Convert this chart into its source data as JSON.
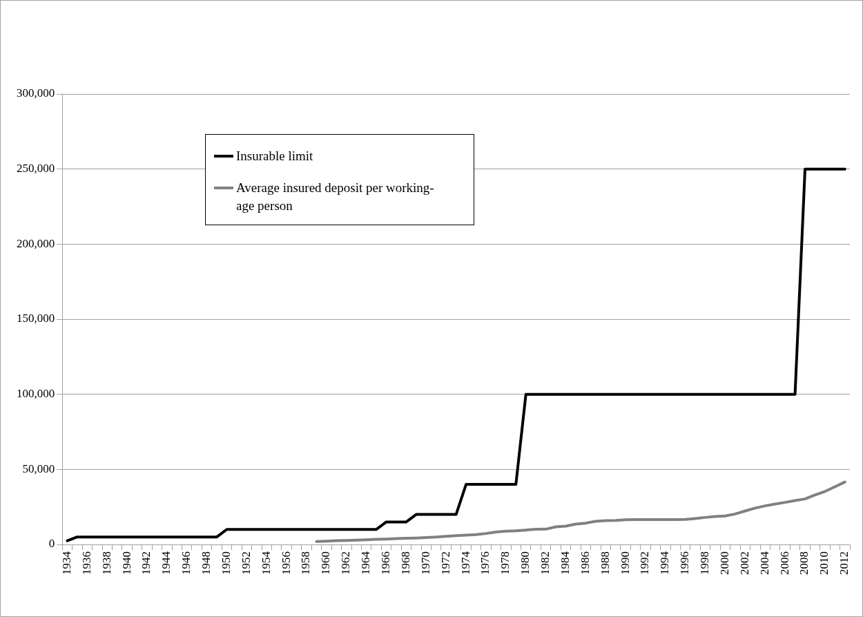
{
  "chart_data": {
    "type": "line",
    "categories": [
      "1934",
      null,
      "1936",
      null,
      "1938",
      null,
      "1940",
      null,
      "1942",
      null,
      "1944",
      null,
      "1946",
      null,
      "1948",
      null,
      "1950",
      null,
      "1952",
      null,
      "1954",
      null,
      "1956",
      null,
      "1958",
      null,
      "1960",
      null,
      "1962",
      null,
      "1964",
      null,
      "1966",
      null,
      "1968",
      null,
      "1970",
      null,
      "1972",
      null,
      "1974",
      null,
      "1976",
      null,
      "1978",
      null,
      "1980",
      null,
      "1982",
      null,
      "1984",
      null,
      "1986",
      null,
      "1988",
      null,
      "1990",
      null,
      "1992",
      null,
      "1994",
      null,
      "1996",
      null,
      "1998",
      null,
      "2000",
      null,
      "2002",
      null,
      "2004",
      null,
      "2006",
      null,
      "2008",
      null,
      "2010",
      null,
      "2012"
    ],
    "series": [
      {
        "name": "Insurable limit",
        "color": "#000000",
        "values": [
          2500,
          5000,
          5000,
          5000,
          5000,
          5000,
          5000,
          5000,
          5000,
          5000,
          5000,
          5000,
          5000,
          5000,
          5000,
          5000,
          10000,
          10000,
          10000,
          10000,
          10000,
          10000,
          10000,
          10000,
          10000,
          10000,
          10000,
          10000,
          10000,
          10000,
          10000,
          10000,
          15000,
          15000,
          15000,
          20000,
          20000,
          20000,
          20000,
          20000,
          40000,
          40000,
          40000,
          40000,
          40000,
          40000,
          100000,
          100000,
          100000,
          100000,
          100000,
          100000,
          100000,
          100000,
          100000,
          100000,
          100000,
          100000,
          100000,
          100000,
          100000,
          100000,
          100000,
          100000,
          100000,
          100000,
          100000,
          100000,
          100000,
          100000,
          100000,
          100000,
          100000,
          100000,
          250000,
          250000,
          250000,
          250000,
          250000
        ]
      },
      {
        "name": "Average insured deposit per working-age person",
        "color": "#808080",
        "values": [
          null,
          null,
          null,
          null,
          null,
          null,
          null,
          null,
          null,
          null,
          null,
          null,
          null,
          null,
          null,
          null,
          null,
          null,
          null,
          null,
          null,
          null,
          null,
          null,
          null,
          2000,
          2200,
          2500,
          2700,
          2900,
          3100,
          3400,
          3600,
          3900,
          4100,
          4300,
          4600,
          4900,
          5400,
          5900,
          6200,
          6600,
          7300,
          8300,
          8900,
          9100,
          9600,
          10100,
          10200,
          11700,
          12200,
          13600,
          14200,
          15400,
          15900,
          16000,
          16500,
          16600,
          16600,
          16600,
          16600,
          16600,
          16700,
          17300,
          18000,
          18600,
          19000,
          20300,
          22300,
          24200,
          25700,
          26900,
          28000,
          29200,
          30300,
          33000,
          35300,
          38400,
          41600
        ]
      }
    ],
    "ylim": [
      0,
      300000
    ],
    "yticks": [
      0,
      {
        "value": 50000,
        "label": "50,000"
      },
      {
        "value": 100000,
        "label": "100,000"
      },
      {
        "value": 150000,
        "label": "150,000"
      },
      {
        "value": 200000,
        "label": "200,000"
      },
      {
        "value": 250000,
        "label": "250,000"
      },
      {
        "value": 300000,
        "label": "300,000"
      }
    ],
    "grid": "y",
    "legend": "top left",
    "marker": "none",
    "line_style": "solid"
  }
}
